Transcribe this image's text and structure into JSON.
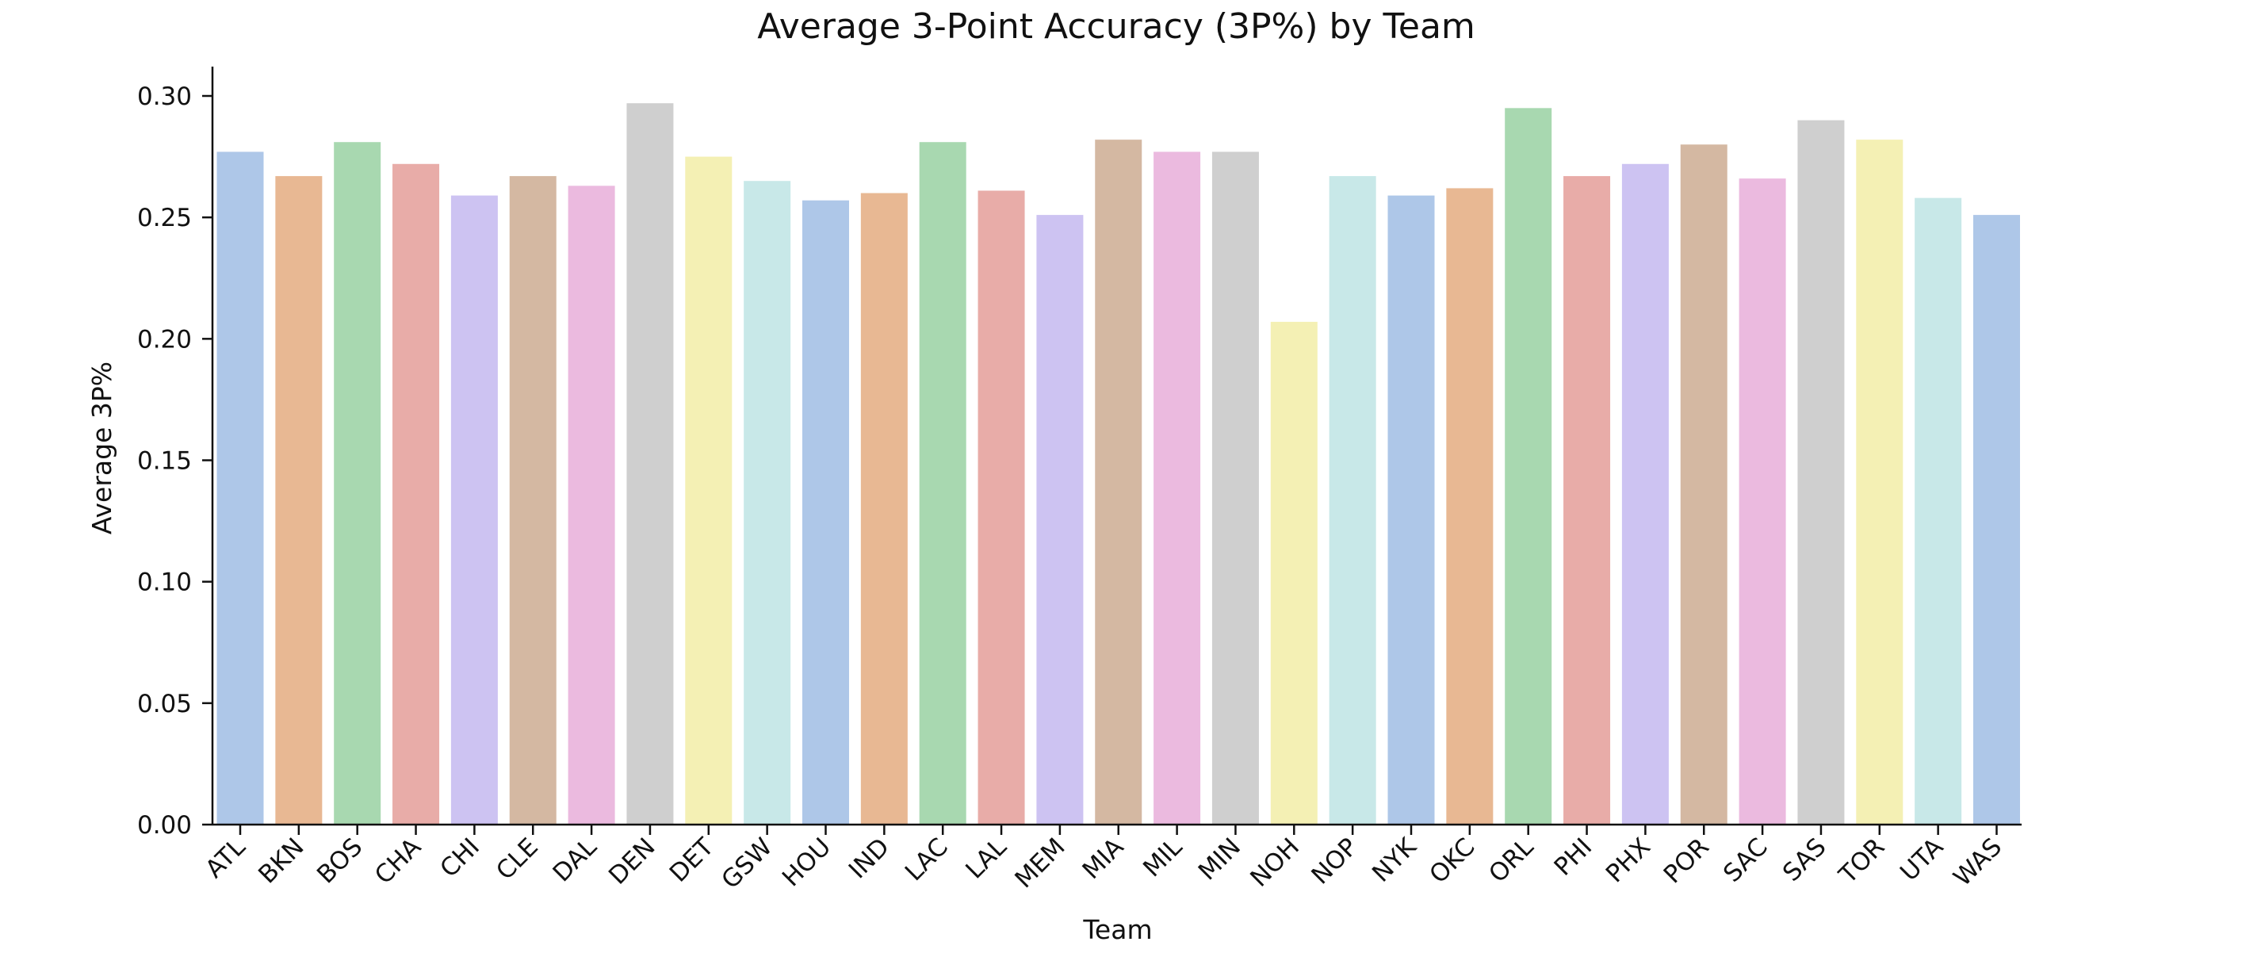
{
  "chart_data": {
    "type": "bar",
    "title": "Average 3-Point Accuracy (3P%) by Team",
    "xlabel": "Team",
    "ylabel": "Average 3P%",
    "ylim": [
      0,
      0.31
    ],
    "yticks": [
      0.0,
      0.05,
      0.1,
      0.15,
      0.2,
      0.25,
      0.3
    ],
    "ytick_labels": [
      "0.00",
      "0.05",
      "0.10",
      "0.15",
      "0.20",
      "0.25",
      "0.30"
    ],
    "grid": false,
    "categories": [
      "ATL",
      "BKN",
      "BOS",
      "CHA",
      "CHI",
      "CLE",
      "DAL",
      "DEN",
      "DET",
      "GSW",
      "HOU",
      "IND",
      "LAC",
      "LAL",
      "MEM",
      "MIA",
      "MIL",
      "MIN",
      "NOH",
      "NOP",
      "NYK",
      "OKC",
      "ORL",
      "PHI",
      "PHX",
      "POR",
      "SAC",
      "SAS",
      "TOR",
      "UTA",
      "WAS"
    ],
    "values": [
      0.277,
      0.267,
      0.281,
      0.272,
      0.259,
      0.267,
      0.263,
      0.297,
      0.275,
      0.265,
      0.257,
      0.26,
      0.281,
      0.261,
      0.251,
      0.282,
      0.277,
      0.277,
      0.207,
      0.267,
      0.259,
      0.262,
      0.295,
      0.267,
      0.272,
      0.28,
      0.266,
      0.29,
      0.282,
      0.258,
      0.251
    ],
    "colors": [
      "#aec7e8",
      "#e8b893",
      "#a8d8b0",
      "#e8aca8",
      "#cdc3f2",
      "#d4b8a2",
      "#ebbadf",
      "#cfcfcf",
      "#f4f0b4",
      "#c8e8e8"
    ]
  }
}
